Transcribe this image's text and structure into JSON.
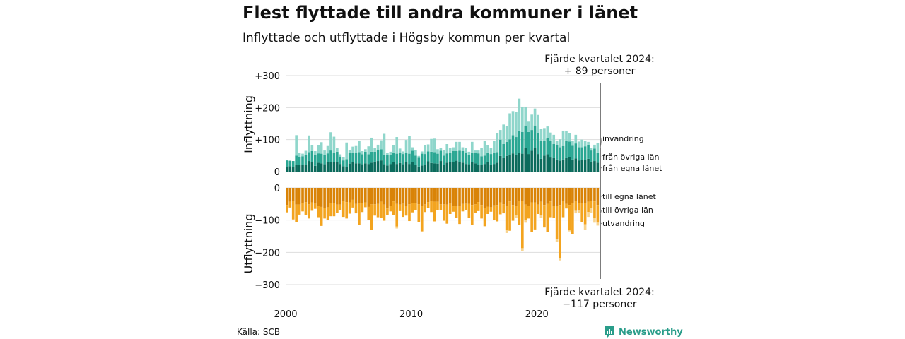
{
  "title": "Flest flyttade till andra kommuner i länet",
  "subtitle": "Inflyttade och utflyttade i Högsby kommun per kvartal",
  "annotation_top": {
    "line1": "Fjärde kvartalet 2024:",
    "line2": "+ 89 personer"
  },
  "annotation_bottom": {
    "line1": "Fjärde kvartalet 2024:",
    "line2": "−117 personer"
  },
  "source": "Källa: SCB",
  "brand": {
    "name": "Newsworthy",
    "color": "#2a9d8a",
    "icon": "newsworthy-logo-icon"
  },
  "colors": {
    "in_egna": "#0b6b5c",
    "in_ovriga": "#2aa793",
    "in_invandring": "#8fd6cb",
    "ut_egna": "#d98307",
    "ut_ovriga": "#f3a41f",
    "ut_utvandring": "#f8d38d"
  },
  "chart_data": [
    {
      "type": "bar",
      "stacked": true,
      "panel": "top",
      "ylabel": "Inflyttning",
      "ylim": [
        0,
        300
      ],
      "yticks": [
        "0",
        "+100",
        "+200",
        "+300"
      ],
      "x_start": "2000 Q1",
      "x_end": "2024 Q4",
      "frequency": "quarterly",
      "xticks": [
        "2000",
        "2010",
        "2020"
      ],
      "grid": true,
      "series": [
        {
          "name": "från egna länet",
          "values": [
            15,
            17,
            15,
            20,
            21,
            20,
            22,
            33,
            30,
            18,
            28,
            26,
            23,
            29,
            29,
            29,
            30,
            24,
            17,
            15,
            25,
            29,
            26,
            26,
            23,
            26,
            24,
            28,
            31,
            33,
            35,
            23,
            19,
            24,
            30,
            24,
            27,
            23,
            30,
            24,
            30,
            20,
            16,
            19,
            22,
            32,
            27,
            26,
            25,
            33,
            20,
            28,
            29,
            30,
            34,
            30,
            28,
            24,
            23,
            30,
            26,
            22,
            20,
            24,
            29,
            21,
            24,
            28,
            49,
            42,
            49,
            51,
            57,
            53,
            58,
            56,
            75,
            55,
            65,
            74,
            55,
            40,
            50,
            54,
            44,
            42,
            38,
            34,
            38,
            42,
            45,
            38,
            41,
            35,
            37,
            37,
            40,
            31,
            33,
            28
          ]
        },
        {
          "name": "från övriga län",
          "values": [
            20,
            17,
            18,
            30,
            25,
            28,
            29,
            28,
            34,
            34,
            29,
            30,
            29,
            28,
            37,
            31,
            32,
            23,
            18,
            24,
            34,
            29,
            32,
            35,
            31,
            36,
            30,
            34,
            31,
            34,
            35,
            30,
            32,
            29,
            30,
            32,
            32,
            32,
            29,
            32,
            35,
            30,
            27,
            37,
            33,
            31,
            35,
            35,
            31,
            32,
            30,
            29,
            31,
            34,
            30,
            35,
            36,
            36,
            30,
            30,
            32,
            35,
            28,
            26,
            31,
            34,
            34,
            33,
            51,
            44,
            44,
            50,
            57,
            55,
            70,
            68,
            69,
            69,
            65,
            70,
            66,
            57,
            46,
            51,
            53,
            44,
            44,
            42,
            42,
            54,
            49,
            43,
            47,
            41,
            39,
            42,
            44,
            35,
            39,
            32
          ]
        },
        {
          "name": "invandring",
          "values": [
            0,
            0,
            0,
            64,
            12,
            8,
            14,
            52,
            19,
            12,
            25,
            36,
            14,
            23,
            57,
            49,
            12,
            7,
            11,
            52,
            8,
            20,
            22,
            35,
            10,
            8,
            25,
            44,
            11,
            17,
            28,
            65,
            7,
            9,
            22,
            52,
            13,
            8,
            40,
            56,
            11,
            18,
            6,
            7,
            28,
            22,
            40,
            42,
            14,
            9,
            17,
            29,
            13,
            12,
            29,
            28,
            12,
            15,
            9,
            33,
            8,
            9,
            26,
            47,
            22,
            18,
            39,
            60,
            30,
            61,
            49,
            81,
            75,
            79,
            100,
            79,
            59,
            32,
            48,
            53,
            56,
            36,
            40,
            36,
            25,
            29,
            15,
            25,
            48,
            32,
            26,
            15,
            27,
            18,
            24,
            18,
            9,
            8,
            12,
            29
          ]
        }
      ]
    },
    {
      "type": "bar",
      "stacked": true,
      "panel": "bottom",
      "ylabel": "Utflyttning",
      "ylim": [
        -300,
        0
      ],
      "yticks": [
        "0",
        "−100",
        "−200",
        "−300"
      ],
      "x_start": "2000 Q1",
      "x_end": "2024 Q4",
      "frequency": "quarterly",
      "xticks": [
        "2000",
        "2010",
        "2020"
      ],
      "grid": true,
      "series": [
        {
          "name": "till egna länet",
          "values": [
            -53,
            -43,
            -41,
            -52,
            -52,
            -46,
            -44,
            -51,
            -45,
            -49,
            -56,
            -59,
            -63,
            -60,
            -48,
            -48,
            -52,
            -52,
            -41,
            -44,
            -45,
            -37,
            -50,
            -48,
            -46,
            -45,
            -59,
            -51,
            -51,
            -50,
            -43,
            -52,
            -64,
            -56,
            -42,
            -50,
            -52,
            -49,
            -55,
            -51,
            -48,
            -48,
            -51,
            -56,
            -51,
            -44,
            -40,
            -43,
            -43,
            -51,
            -51,
            -52,
            -49,
            -57,
            -55,
            -56,
            -50,
            -49,
            -50,
            -53,
            -51,
            -44,
            -53,
            -63,
            -58,
            -60,
            -54,
            -53,
            -45,
            -51,
            -57,
            -42,
            -53,
            -57,
            -41,
            -41,
            -52,
            -55,
            -45,
            -45,
            -52,
            -43,
            -53,
            -50,
            -42,
            -55,
            -56,
            -53,
            -41,
            -50,
            -53,
            -47,
            -40,
            -48,
            -47,
            -48,
            -43,
            -41,
            -42,
            -53
          ]
        },
        {
          "name": "till övriga län",
          "values": [
            -23,
            -18,
            -57,
            -55,
            -31,
            -27,
            -40,
            -44,
            -26,
            -16,
            -35,
            -59,
            -32,
            -40,
            -40,
            -40,
            -26,
            -16,
            -49,
            -51,
            -35,
            -24,
            -29,
            -68,
            -29,
            -15,
            -40,
            -79,
            -35,
            -41,
            -50,
            -50,
            -20,
            -17,
            -43,
            -70,
            -20,
            -41,
            -31,
            -52,
            -28,
            -20,
            -55,
            -79,
            -24,
            -18,
            -35,
            -61,
            -25,
            -19,
            -51,
            -59,
            -32,
            -17,
            -39,
            -56,
            -23,
            -19,
            -44,
            -61,
            -27,
            -28,
            -42,
            -56,
            -23,
            -14,
            -46,
            -51,
            -37,
            -28,
            -74,
            -91,
            -49,
            -27,
            -73,
            -146,
            -49,
            -40,
            -91,
            -84,
            -29,
            -41,
            -70,
            -86,
            -49,
            -37,
            -104,
            -164,
            -50,
            -14,
            -77,
            -97,
            -31,
            -22,
            -60,
            -65,
            -32,
            -22,
            -50,
            -55
          ]
        },
        {
          "name": "utvandring",
          "values": [
            0,
            0,
            0,
            0,
            0,
            0,
            0,
            0,
            0,
            0,
            0,
            0,
            0,
            0,
            0,
            0,
            0,
            0,
            0,
            0,
            0,
            0,
            0,
            0,
            0,
            0,
            0,
            0,
            0,
            0,
            0,
            0,
            0,
            0,
            0,
            -6,
            0,
            0,
            0,
            0,
            0,
            0,
            0,
            0,
            0,
            0,
            0,
            0,
            0,
            0,
            0,
            0,
            0,
            0,
            0,
            0,
            0,
            0,
            0,
            0,
            0,
            0,
            0,
            0,
            0,
            0,
            0,
            0,
            0,
            0,
            -9,
            0,
            0,
            -9,
            0,
            -9,
            -7,
            0,
            0,
            0,
            0,
            -8,
            0,
            0,
            0,
            0,
            -8,
            -8,
            0,
            0,
            -5,
            0,
            -8,
            -7,
            0,
            -17,
            -15,
            -14,
            -16,
            -9
          ]
        }
      ]
    }
  ]
}
